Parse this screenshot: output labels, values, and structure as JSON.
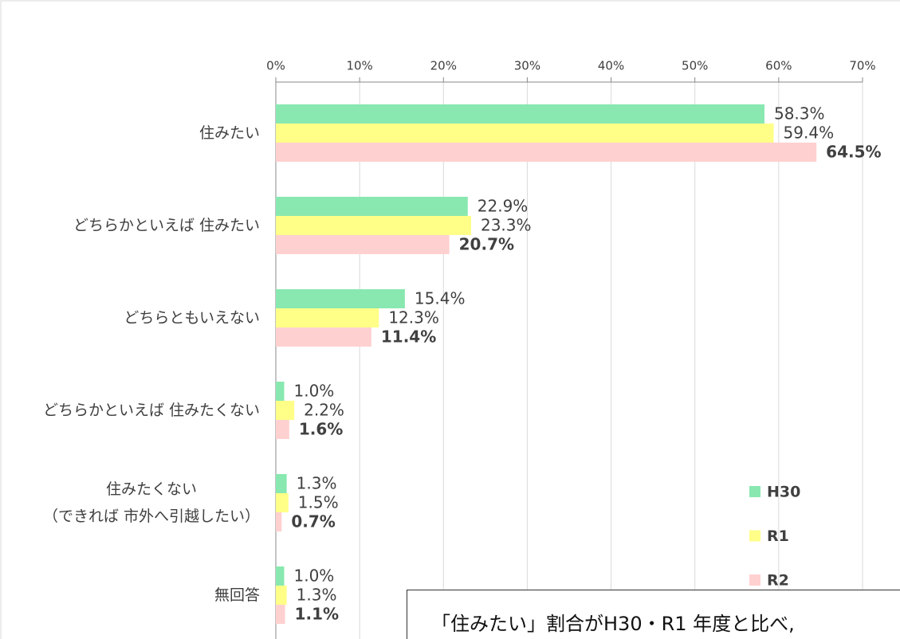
{
  "chart_data": {
    "type": "barh",
    "categories": [
      "住みたい",
      "どちらかといえば 住みたい",
      "どちらともいえない",
      "どちらかといえば 住みたくない",
      "住みたくない\n（できれば 市外へ引越したい）",
      "無回答"
    ],
    "series": [
      {
        "name": "H30",
        "color": "#88e8b0",
        "values": [
          58.3,
          22.9,
          15.4,
          1.0,
          1.3,
          1.0
        ],
        "value_labels": [
          "58.3%",
          "22.9%",
          "15.4%",
          "1.0%",
          "1.3%",
          "1.0%"
        ]
      },
      {
        "name": "R1",
        "color": "#ffff88",
        "values": [
          59.4,
          23.3,
          12.3,
          2.2,
          1.5,
          1.3
        ],
        "value_labels": [
          "59.4%",
          "23.3%",
          "12.3%",
          "2.2%",
          "1.5%",
          "1.3%"
        ]
      },
      {
        "name": "R2",
        "color": "#ffd0d0",
        "values": [
          64.5,
          20.7,
          11.4,
          1.6,
          0.7,
          1.1
        ],
        "value_labels": [
          "64.5%",
          "20.7%",
          "11.4%",
          "1.6%",
          "0.7%",
          "1.1%"
        ]
      }
    ],
    "xlim": [
      0,
      70
    ],
    "xticks": [
      {
        "value": 0,
        "label": "0%"
      },
      {
        "value": 10,
        "label": "10%"
      },
      {
        "value": 20,
        "label": "20%"
      },
      {
        "value": 30,
        "label": "30%"
      },
      {
        "value": 40,
        "label": "40%"
      },
      {
        "value": 50,
        "label": "50%"
      },
      {
        "value": 60,
        "label": "60%"
      },
      {
        "value": 70,
        "label": "70%"
      }
    ],
    "grid": true,
    "legend": "lower right",
    "annotation": "「住みたい」割合がH30・R1 年度と比べ,"
  }
}
